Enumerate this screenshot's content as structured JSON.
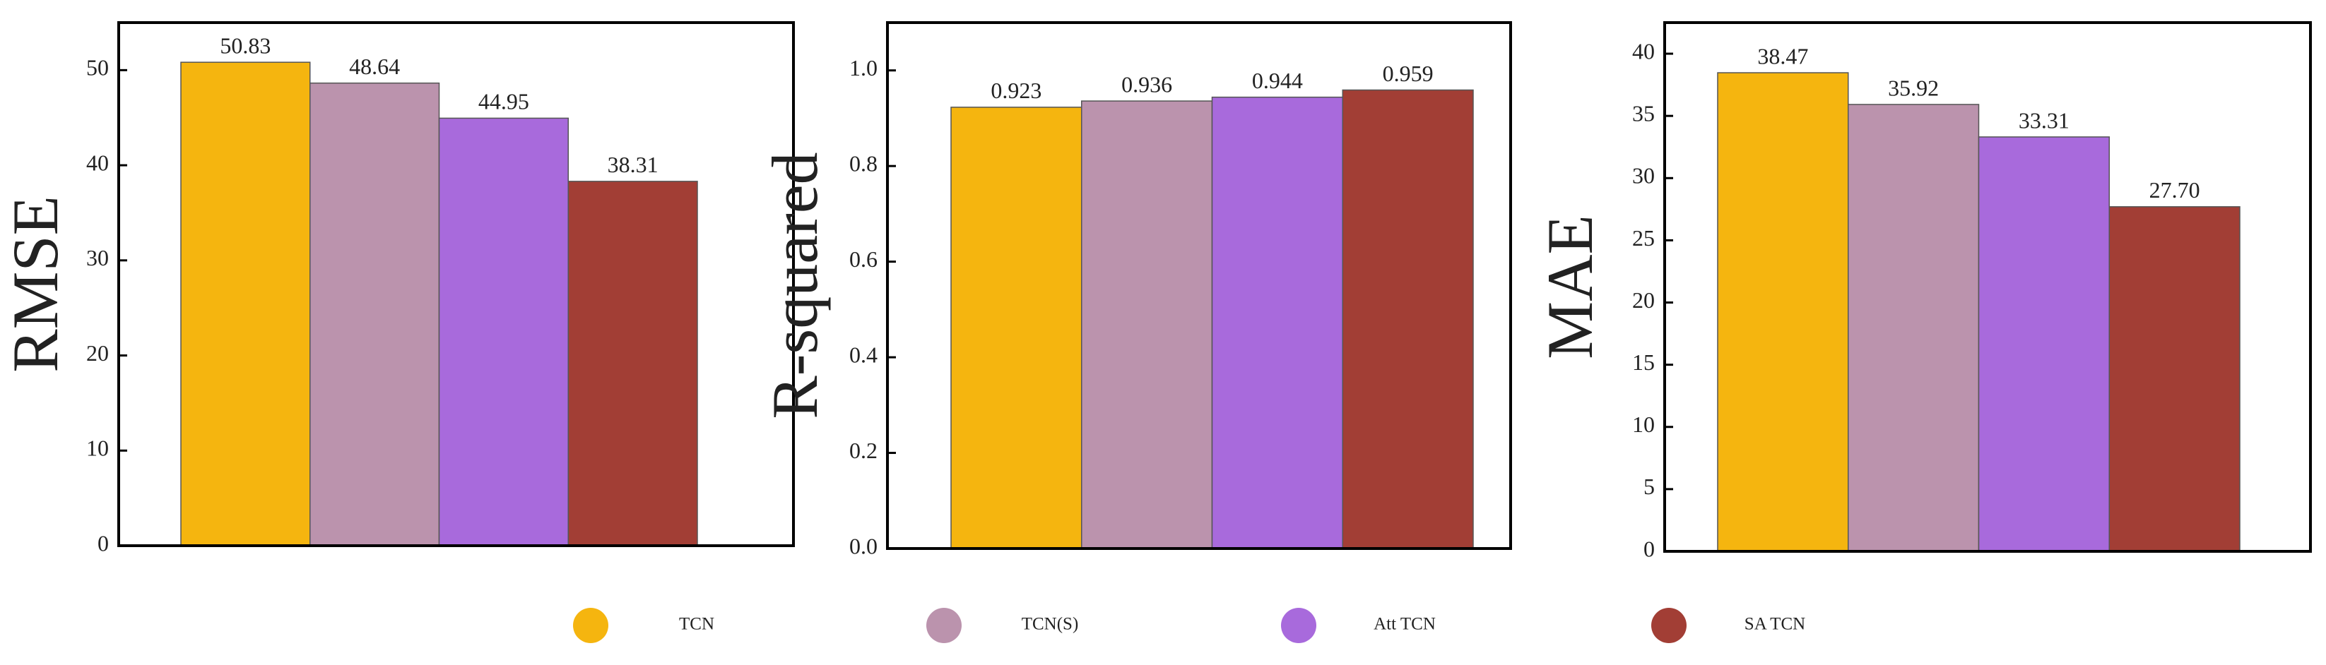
{
  "chart_data": [
    {
      "type": "bar",
      "y_label": "RMSE",
      "values": [
        50.83,
        48.64,
        44.95,
        38.31
      ],
      "ylim": [
        0,
        55
      ],
      "yticks": [
        0,
        10,
        20,
        30,
        40,
        50
      ]
    },
    {
      "type": "bar",
      "y_label": "R-squared",
      "values": [
        0.923,
        0.936,
        0.944,
        0.959
      ],
      "ylim": [
        0,
        1.1
      ],
      "yticks": [
        {
          "value": 0,
          "label": "0.0"
        },
        0.2,
        0.4,
        0.6,
        0.8,
        {
          "value": 1,
          "label": "1.0"
        }
      ]
    },
    {
      "type": "bar",
      "y_label": "MAE",
      "values": [
        38.47,
        35.92,
        33.31,
        27.7
      ],
      "value_labels": [
        "38.47",
        "35.92",
        "33.31",
        "27.70"
      ],
      "ylim": [
        0,
        42.5
      ],
      "yticks": [
        0,
        5,
        10,
        15,
        20,
        25,
        30,
        35,
        40
      ]
    }
  ],
  "legend": [
    {
      "name": "TCN",
      "color": "#f5b50f"
    },
    {
      "name": "TCN(S)",
      "color": "#bb93ad"
    },
    {
      "name": "Att TCN",
      "color": "#a86adc"
    },
    {
      "name": "SA TCN",
      "color": "#a23e35"
    }
  ]
}
